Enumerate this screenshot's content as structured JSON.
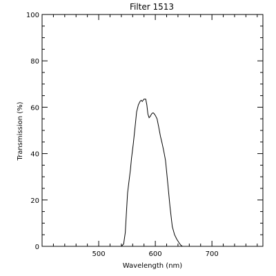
{
  "chart_data": {
    "type": "line",
    "title": "Filter 1513",
    "xlabel": "Wavelength (nm)",
    "ylabel": "Transmission (%)",
    "xlim": [
      400,
      790
    ],
    "ylim": [
      0,
      100
    ],
    "x_ticks": [
      500,
      600,
      700
    ],
    "y_ticks": [
      0,
      20,
      40,
      60,
      80,
      100
    ],
    "x_tick_labels": [
      "500",
      "600",
      "700"
    ],
    "y_tick_labels": [
      "0",
      "20",
      "40",
      "60",
      "80",
      "100"
    ],
    "grid": false,
    "series": [
      {
        "color": "#000000",
        "x": [
          400,
          540,
          544,
          547,
          549,
          551,
          553,
          556,
          558,
          561,
          564,
          567,
          570,
          573,
          575,
          577,
          580,
          583,
          585,
          587,
          589,
          591,
          593,
          595,
          597,
          600,
          603,
          606,
          609,
          612,
          615,
          618,
          622,
          626,
          630,
          634,
          638,
          642,
          645,
          648,
          651,
          654,
          657,
          790
        ],
        "y": [
          0,
          0,
          1,
          6,
          15,
          23,
          27,
          33,
          38,
          44,
          51,
          58,
          61,
          62.5,
          63,
          62.5,
          63.5,
          63.5,
          61,
          57,
          55.5,
          56,
          57,
          57.5,
          57.5,
          56.5,
          55,
          51.5,
          47.5,
          44.5,
          41,
          37,
          27,
          17,
          8.5,
          5,
          3,
          1.5,
          0.5,
          0,
          0,
          0,
          0,
          0
        ]
      }
    ]
  }
}
